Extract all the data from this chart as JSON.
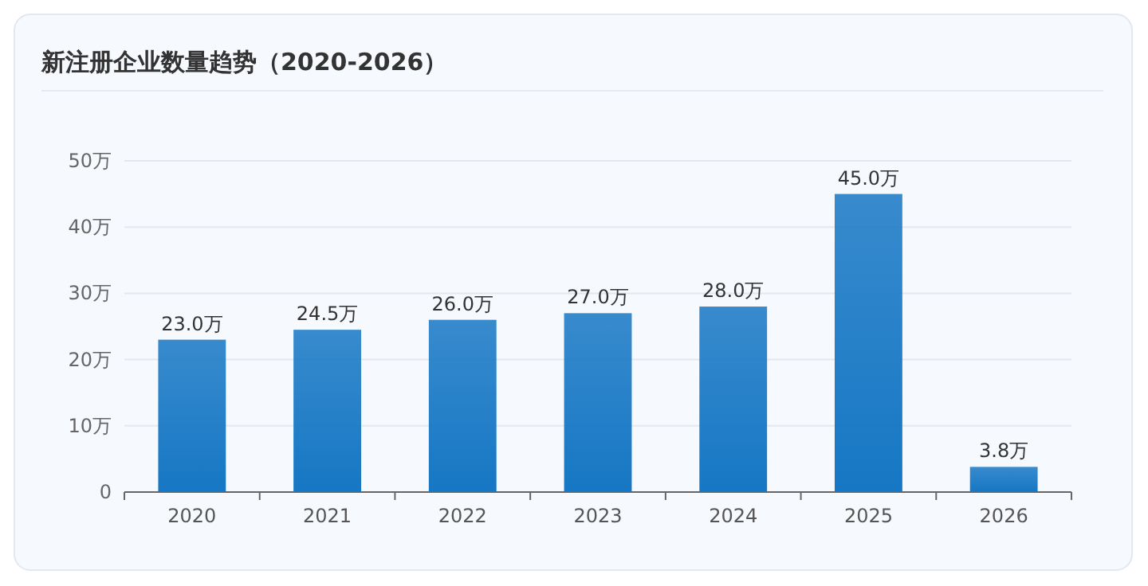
{
  "chart_data": {
    "type": "bar",
    "title": "新注册企业数量趋势（2020-2026）",
    "categories": [
      "2020",
      "2021",
      "2022",
      "2023",
      "2024",
      "2025",
      "2026"
    ],
    "values": [
      23.0,
      24.5,
      26.0,
      27.0,
      28.0,
      45.0,
      3.8
    ],
    "value_labels": [
      "23.0万",
      "24.5万",
      "26.0万",
      "27.0万",
      "28.0万",
      "45.0万",
      "3.8万"
    ],
    "color": "#1677c4",
    "ylim": [
      0,
      50
    ],
    "yticks": [
      0,
      {
        "value": 10,
        "label": "10万"
      },
      {
        "value": 20,
        "label": "20万"
      },
      {
        "value": 30,
        "label": "30万"
      },
      {
        "value": 40,
        "label": "40万"
      },
      {
        "value": 50,
        "label": "50万"
      }
    ],
    "grid": "y"
  }
}
